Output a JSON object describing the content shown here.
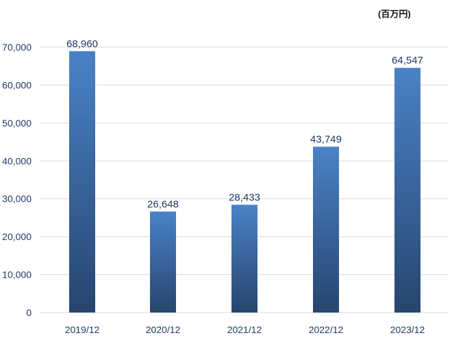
{
  "unit_label": "(百万円)",
  "colors": {
    "bar_top": "#4a82c7",
    "bar_bottom": "#27456f",
    "gridline": "#d9d9d9",
    "tick_text": "#1f3864",
    "label_text": "#1f3864"
  },
  "chart_data": {
    "type": "bar",
    "title": "",
    "xlabel": "",
    "ylabel": "",
    "categories": [
      "2019/12",
      "2020/12",
      "2021/12",
      "2022/12",
      "2023/12"
    ],
    "values": [
      68960,
      26648,
      28433,
      43749,
      64547
    ],
    "data_labels": [
      "68,960",
      "26,648",
      "28,433",
      "43,749",
      "64,547"
    ],
    "yticks": [
      0,
      10000,
      20000,
      30000,
      40000,
      50000,
      60000,
      70000
    ],
    "ytick_labels": [
      "0",
      "10,000",
      "20,000",
      "30,000",
      "40,000",
      "50,000",
      "60,000",
      "70,000"
    ],
    "ylim": [
      0,
      70000
    ],
    "grid": true,
    "legend": "none"
  }
}
